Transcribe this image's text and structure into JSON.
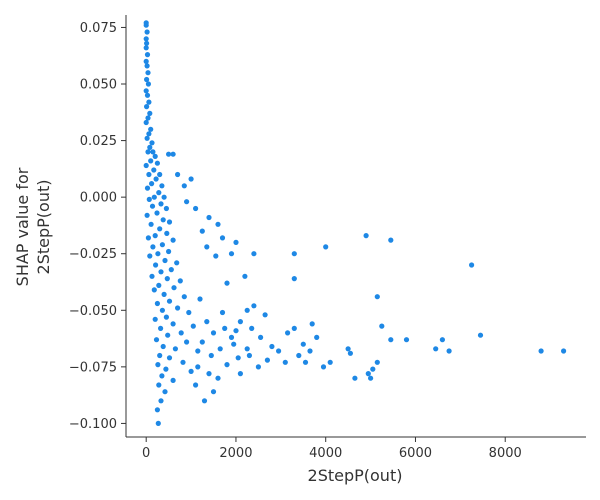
{
  "chart_data": {
    "type": "scatter",
    "title": "",
    "xlabel": "2StepP(out)",
    "ylabel_lines": [
      "SHAP value for",
      "2StepP(out)"
    ],
    "xlim": [
      -450,
      9800
    ],
    "ylim": [
      -0.106,
      0.0805
    ],
    "x_ticks": [
      0,
      2000,
      4000,
      6000,
      8000
    ],
    "x_tick_labels": [
      "0",
      "2000",
      "4000",
      "6000",
      "8000"
    ],
    "y_ticks": [
      0.075,
      0.05,
      0.025,
      0.0,
      -0.025,
      -0.05,
      -0.075,
      -0.1
    ],
    "y_tick_labels": [
      "0.075",
      "0.050",
      "0.025",
      "0.000",
      "−0.025",
      "−0.050",
      "−0.075",
      "−0.100"
    ],
    "grid": false,
    "point_color": "#1e88e5",
    "cluster_points": [
      [
        0,
        0.077
      ],
      [
        0,
        0.076
      ],
      [
        20,
        0.073
      ],
      [
        0,
        0.07
      ],
      [
        10,
        0.068
      ],
      [
        0,
        0.066
      ],
      [
        30,
        0.063
      ],
      [
        0,
        0.06
      ],
      [
        20,
        0.058
      ],
      [
        40,
        0.055
      ],
      [
        10,
        0.052
      ],
      [
        50,
        0.05
      ],
      [
        0,
        0.047
      ],
      [
        30,
        0.045
      ],
      [
        60,
        0.042
      ],
      [
        10,
        0.04
      ],
      [
        80,
        0.037
      ],
      [
        40,
        0.035
      ],
      [
        0,
        0.033
      ],
      [
        100,
        0.03
      ],
      [
        60,
        0.028
      ],
      [
        20,
        0.026
      ],
      [
        130,
        0.024
      ],
      [
        80,
        0.022
      ],
      [
        150,
        0.02
      ],
      [
        40,
        0.02
      ],
      [
        200,
        0.018
      ],
      [
        100,
        0.016
      ],
      [
        250,
        0.015
      ],
      [
        0,
        0.014
      ],
      [
        170,
        0.012
      ],
      [
        300,
        0.01
      ],
      [
        60,
        0.01
      ],
      [
        220,
        0.008
      ],
      [
        120,
        0.006
      ],
      [
        350,
        0.005
      ],
      [
        30,
        0.004
      ],
      [
        280,
        0.002
      ],
      [
        180,
        0.0
      ],
      [
        400,
        0.0
      ],
      [
        70,
        -0.001
      ],
      [
        330,
        -0.003
      ],
      [
        140,
        -0.004
      ],
      [
        450,
        -0.005
      ],
      [
        240,
        -0.007
      ],
      [
        20,
        -0.008
      ],
      [
        380,
        -0.01
      ],
      [
        520,
        -0.011
      ],
      [
        110,
        -0.012
      ],
      [
        300,
        -0.014
      ],
      [
        460,
        -0.016
      ],
      [
        200,
        -0.017
      ],
      [
        50,
        -0.018
      ],
      [
        600,
        -0.019
      ],
      [
        360,
        -0.021
      ],
      [
        150,
        -0.022
      ],
      [
        500,
        -0.024
      ],
      [
        260,
        -0.025
      ],
      [
        80,
        -0.026
      ],
      [
        420,
        -0.028
      ],
      [
        680,
        -0.029
      ],
      [
        210,
        -0.03
      ],
      [
        560,
        -0.032
      ],
      [
        330,
        -0.033
      ],
      [
        130,
        -0.035
      ],
      [
        470,
        -0.036
      ],
      [
        760,
        -0.037
      ],
      [
        280,
        -0.039
      ],
      [
        620,
        -0.04
      ],
      [
        180,
        -0.041
      ],
      [
        400,
        -0.043
      ],
      [
        850,
        -0.044
      ],
      [
        520,
        -0.046
      ],
      [
        250,
        -0.047
      ],
      [
        700,
        -0.049
      ],
      [
        360,
        -0.05
      ],
      [
        950,
        -0.051
      ],
      [
        450,
        -0.053
      ],
      [
        200,
        -0.054
      ],
      [
        600,
        -0.056
      ],
      [
        1050,
        -0.057
      ],
      [
        320,
        -0.058
      ],
      [
        780,
        -0.06
      ],
      [
        480,
        -0.061
      ],
      [
        230,
        -0.063
      ],
      [
        900,
        -0.064
      ],
      [
        380,
        -0.066
      ],
      [
        650,
        -0.067
      ],
      [
        1150,
        -0.068
      ],
      [
        300,
        -0.07
      ],
      [
        520,
        -0.071
      ],
      [
        820,
        -0.073
      ],
      [
        260,
        -0.074
      ],
      [
        440,
        -0.076
      ],
      [
        1000,
        -0.077
      ],
      [
        350,
        -0.079
      ],
      [
        600,
        -0.081
      ],
      [
        280,
        -0.083
      ],
      [
        420,
        -0.086
      ],
      [
        330,
        -0.09
      ],
      [
        250,
        -0.094
      ],
      [
        270,
        -0.1
      ]
    ],
    "scattered_points": [
      [
        500,
        0.019
      ],
      [
        600,
        0.019
      ],
      [
        700,
        0.01
      ],
      [
        850,
        0.005
      ],
      [
        1000,
        0.008
      ],
      [
        1100,
        -0.005
      ],
      [
        900,
        -0.002
      ],
      [
        1250,
        -0.015
      ],
      [
        1400,
        -0.009
      ],
      [
        1600,
        -0.012
      ],
      [
        1700,
        -0.018
      ],
      [
        1900,
        -0.025
      ],
      [
        2000,
        -0.02
      ],
      [
        1350,
        -0.022
      ],
      [
        1550,
        -0.026
      ],
      [
        2400,
        -0.025
      ],
      [
        3300,
        -0.025
      ],
      [
        4000,
        -0.022
      ],
      [
        4900,
        -0.017
      ],
      [
        5450,
        -0.019
      ],
      [
        7250,
        -0.03
      ],
      [
        3300,
        -0.036
      ],
      [
        1800,
        -0.038
      ],
      [
        2200,
        -0.035
      ],
      [
        2400,
        -0.048
      ],
      [
        2650,
        -0.052
      ],
      [
        2100,
        -0.055
      ],
      [
        1200,
        -0.045
      ],
      [
        1500,
        -0.06
      ],
      [
        1750,
        -0.058
      ],
      [
        1950,
        -0.065
      ],
      [
        2250,
        -0.067
      ],
      [
        2550,
        -0.062
      ],
      [
        2800,
        -0.066
      ],
      [
        3150,
        -0.06
      ],
      [
        3300,
        -0.058
      ],
      [
        3500,
        -0.065
      ],
      [
        3650,
        -0.068
      ],
      [
        3800,
        -0.062
      ],
      [
        3700,
        -0.056
      ],
      [
        3950,
        -0.075
      ],
      [
        4100,
        -0.073
      ],
      [
        3400,
        -0.07
      ],
      [
        3100,
        -0.073
      ],
      [
        2700,
        -0.072
      ],
      [
        2500,
        -0.075
      ],
      [
        2300,
        -0.07
      ],
      [
        2100,
        -0.078
      ],
      [
        1800,
        -0.074
      ],
      [
        1600,
        -0.08
      ],
      [
        1300,
        -0.09
      ],
      [
        1100,
        -0.083
      ],
      [
        1500,
        -0.086
      ],
      [
        4500,
        -0.067
      ],
      [
        4550,
        -0.069
      ],
      [
        4650,
        -0.08
      ],
      [
        5000,
        -0.08
      ],
      [
        5050,
        -0.076
      ],
      [
        5150,
        -0.073
      ],
      [
        5150,
        -0.044
      ],
      [
        5250,
        -0.057
      ],
      [
        5450,
        -0.063
      ],
      [
        5800,
        -0.063
      ],
      [
        6450,
        -0.067
      ],
      [
        6600,
        -0.063
      ],
      [
        6750,
        -0.068
      ],
      [
        7450,
        -0.061
      ],
      [
        8800,
        -0.068
      ],
      [
        9300,
        -0.068
      ],
      [
        1450,
        -0.07
      ],
      [
        1650,
        -0.067
      ],
      [
        1900,
        -0.062
      ],
      [
        2050,
        -0.071
      ],
      [
        2350,
        -0.058
      ],
      [
        2950,
        -0.068
      ],
      [
        3550,
        -0.073
      ],
      [
        4950,
        -0.078
      ],
      [
        1250,
        -0.064
      ],
      [
        1350,
        -0.055
      ],
      [
        1700,
        -0.051
      ],
      [
        2000,
        -0.059
      ],
      [
        2250,
        -0.05
      ],
      [
        1150,
        -0.075
      ],
      [
        1400,
        -0.078
      ]
    ]
  }
}
